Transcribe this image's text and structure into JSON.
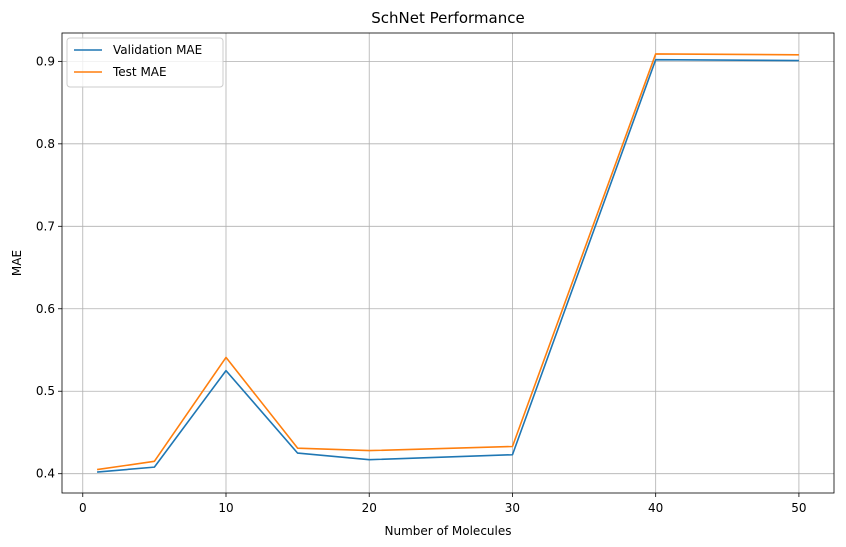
{
  "chart_data": {
    "type": "line",
    "title": "SchNet Performance",
    "xlabel": "Number of Molecules",
    "ylabel": "MAE",
    "x": [
      1,
      5,
      10,
      15,
      20,
      30,
      40,
      50
    ],
    "series": [
      {
        "name": "Validation MAE",
        "color": "#1f77b4",
        "values": [
          0.402,
          0.408,
          0.525,
          0.425,
          0.417,
          0.423,
          0.902,
          0.901
        ]
      },
      {
        "name": "Test MAE",
        "color": "#ff7f0e",
        "values": [
          0.405,
          0.415,
          0.541,
          0.431,
          0.428,
          0.433,
          0.909,
          0.908
        ]
      }
    ],
    "xlim": [
      -1.45,
      52.45
    ],
    "ylim": [
      0.3766,
      0.9344
    ],
    "xticks": [
      0,
      10,
      20,
      30,
      40,
      50
    ],
    "yticks": [
      0.4,
      0.5,
      0.6,
      0.7,
      0.8,
      0.9
    ],
    "grid": true,
    "legend_position": "upper-left"
  }
}
